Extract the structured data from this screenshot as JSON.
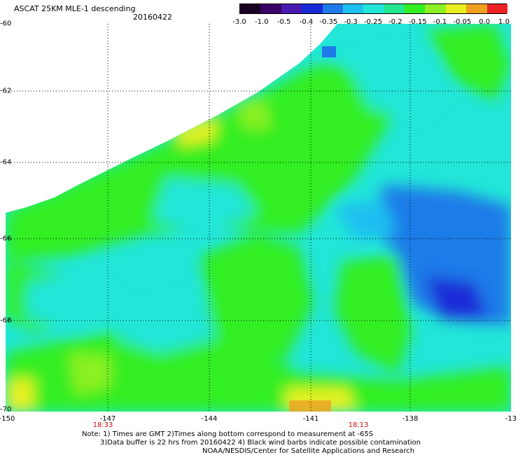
{
  "header": {
    "title": "ASCAT 25KM MLE-1 descending",
    "date": "20160422"
  },
  "colorbar": {
    "labels": [
      "-3.0",
      "-1.0",
      "-0.5",
      "-0.4",
      "-0.35",
      "-0.3",
      "-0.25",
      "-0.2",
      "-0.15",
      "-0.1",
      "-0.05",
      "0.0",
      "1.0"
    ],
    "colors": [
      "#1a0022",
      "#3a0066",
      "#4a1ab0",
      "#1a2ad8",
      "#1f7be8",
      "#1fc0f0",
      "#22e6d8",
      "#22e890",
      "#33ee22",
      "#8cf022",
      "#e8f022",
      "#f0a020",
      "#ee2222"
    ]
  },
  "map": {
    "lat_labels": [
      "-60",
      "-62",
      "-64",
      "-66",
      "-68",
      "-70"
    ],
    "lon_labels": [
      "-150",
      "-147",
      "-144",
      "-141",
      "-138",
      "-13"
    ],
    "times": [
      "18:33",
      "18:13"
    ]
  },
  "notes": {
    "line1": "Note: 1) Times are GMT 2)Times along bottom correspond to measurement at -65S",
    "line2": "3)Data buffer is 22 hrs from 20160422 4) Black wind barbs indicate possible contamination",
    "line3": "NOAA/NESDIS/Center for Satellite Applications and Research"
  }
}
